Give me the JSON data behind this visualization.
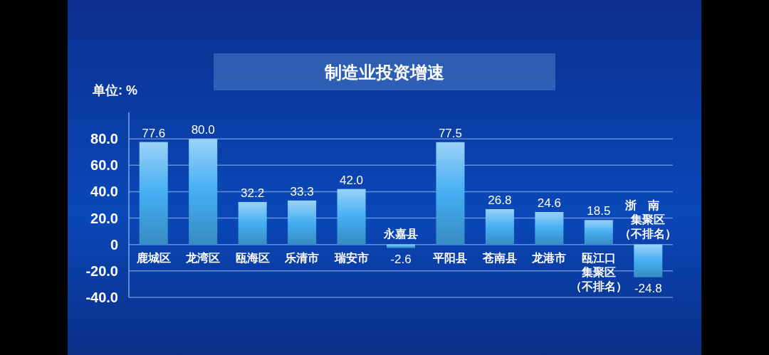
{
  "chart_data": {
    "type": "bar",
    "title": "制造业投资增速",
    "ylabel": "单位: %",
    "categories": [
      "鹿城区",
      "龙湾区",
      "瓯海区",
      "乐清市",
      "瑞安市",
      "永嘉县",
      "平阳县",
      "苍南县",
      "龙港市",
      "瓯江口集聚区（不排名）",
      "浙南集聚区（不排名）"
    ],
    "values": [
      77.6,
      80.0,
      32.2,
      33.3,
      42.0,
      -2.6,
      77.5,
      26.8,
      24.6,
      18.5,
      -24.8
    ],
    "value_labels": [
      "77.6",
      "80.0",
      "32.2",
      "33.3",
      "42.0",
      "-2.6",
      "77.5",
      "26.8",
      "24.6",
      "18.5",
      "-24.8"
    ],
    "color": "#45aef2",
    "ylim": [
      -40,
      100
    ],
    "yticks": [
      {
        "value": -40,
        "label": "-40.0"
      },
      {
        "value": -20,
        "label": "-20.0"
      },
      0,
      {
        "value": 20,
        "label": "20.0"
      },
      {
        "value": 40,
        "label": "40.0"
      },
      {
        "value": 60,
        "label": "60.0"
      },
      {
        "value": 80,
        "label": "80.0"
      }
    ],
    "grid": "y"
  }
}
